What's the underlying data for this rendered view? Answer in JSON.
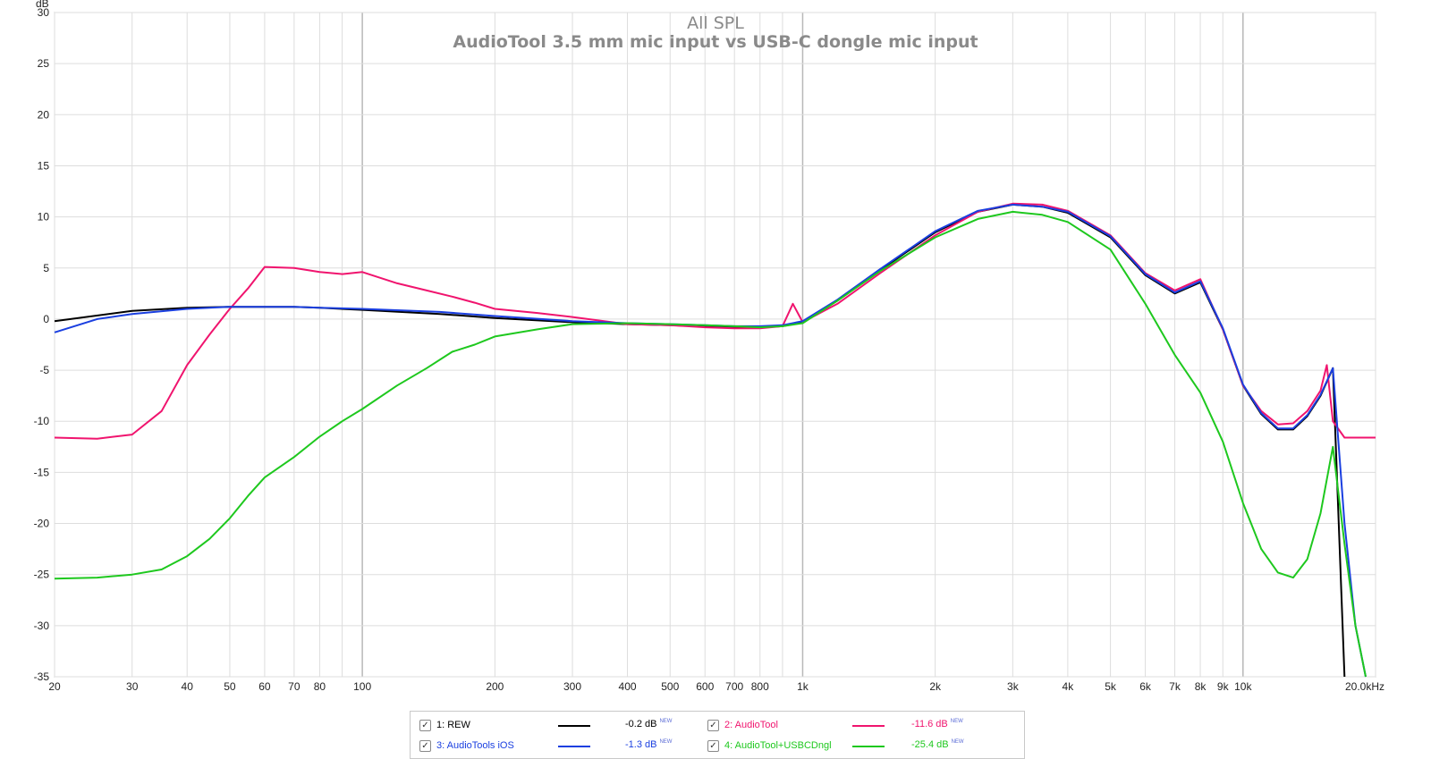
{
  "chart_data": {
    "type": "line",
    "title": "All SPL",
    "subtitle": "AudioTool 3.5 mm mic input vs USB-C dongle mic input",
    "ylabel": "dB",
    "xscale": "log",
    "xlim": [
      20,
      20000
    ],
    "ylim": [
      -35,
      30
    ],
    "yticks": [
      30,
      25,
      20,
      15,
      10,
      5,
      0,
      -5,
      -10,
      -15,
      -20,
      -25,
      -30,
      -35
    ],
    "xticks": [
      {
        "v": 20,
        "label": "20"
      },
      {
        "v": 30,
        "label": "30"
      },
      {
        "v": 40,
        "label": "40"
      },
      {
        "v": 50,
        "label": "50"
      },
      {
        "v": 60,
        "label": "60"
      },
      {
        "v": 70,
        "label": "70"
      },
      {
        "v": 80,
        "label": "80"
      },
      {
        "v": 100,
        "label": "100"
      },
      {
        "v": 200,
        "label": "200"
      },
      {
        "v": 300,
        "label": "300"
      },
      {
        "v": 400,
        "label": "400"
      },
      {
        "v": 500,
        "label": "500"
      },
      {
        "v": 600,
        "label": "600"
      },
      {
        "v": 700,
        "label": "700"
      },
      {
        "v": 800,
        "label": "800"
      },
      {
        "v": 1000,
        "label": "1k"
      },
      {
        "v": 2000,
        "label": "2k"
      },
      {
        "v": 3000,
        "label": "3k"
      },
      {
        "v": 4000,
        "label": "4k"
      },
      {
        "v": 5000,
        "label": "5k"
      },
      {
        "v": 6000,
        "label": "6k"
      },
      {
        "v": 7000,
        "label": "7k"
      },
      {
        "v": 8000,
        "label": "8k"
      },
      {
        "v": 9000,
        "label": "9k"
      },
      {
        "v": 10000,
        "label": "10k"
      },
      {
        "v": 20000,
        "label": "20.0kHz"
      }
    ],
    "grid": true,
    "series": [
      {
        "name": "1: REW",
        "color": "#000000",
        "value_label": "-0.2 dB",
        "x": [
          20,
          30,
          40,
          50,
          60,
          70,
          80,
          100,
          150,
          200,
          300,
          400,
          500,
          600,
          700,
          800,
          900,
          1000,
          1200,
          1500,
          2000,
          2500,
          3000,
          3500,
          4000,
          5000,
          6000,
          7000,
          8000,
          9000,
          10000,
          11000,
          12000,
          13000,
          14000,
          15000,
          16000,
          17000
        ],
        "y": [
          -0.2,
          0.8,
          1.1,
          1.2,
          1.2,
          1.2,
          1.1,
          0.9,
          0.5,
          0.1,
          -0.3,
          -0.5,
          -0.6,
          -0.7,
          -0.8,
          -0.8,
          -0.7,
          -0.3,
          1.8,
          4.8,
          8.5,
          10.5,
          11.2,
          11.0,
          10.4,
          8.0,
          4.3,
          2.5,
          3.6,
          -1.0,
          -6.5,
          -9.3,
          -10.8,
          -10.8,
          -9.5,
          -7.5,
          -4.8,
          -35.0
        ]
      },
      {
        "name": "2: AudioTool",
        "color": "#f0146e",
        "value_label": "-11.6 dB",
        "x": [
          20,
          25,
          30,
          35,
          40,
          45,
          50,
          55,
          60,
          70,
          80,
          90,
          100,
          120,
          140,
          160,
          180,
          200,
          250,
          300,
          400,
          500,
          600,
          700,
          800,
          900,
          950,
          1000,
          1200,
          1500,
          2000,
          2500,
          3000,
          3500,
          4000,
          5000,
          6000,
          7000,
          8000,
          9000,
          10000,
          11000,
          12000,
          13000,
          14000,
          15000,
          15500,
          16000,
          17000,
          18000,
          20000
        ],
        "y": [
          -11.6,
          -11.7,
          -11.3,
          -9.0,
          -4.5,
          -1.5,
          1.0,
          3.0,
          5.1,
          5.0,
          4.6,
          4.4,
          4.6,
          3.5,
          2.8,
          2.2,
          1.6,
          1.0,
          0.6,
          0.2,
          -0.5,
          -0.6,
          -0.8,
          -0.9,
          -0.9,
          -0.7,
          1.5,
          -0.3,
          1.5,
          4.5,
          8.2,
          10.5,
          11.3,
          11.2,
          10.6,
          8.2,
          4.5,
          2.8,
          3.9,
          -1.0,
          -6.5,
          -9.0,
          -10.3,
          -10.2,
          -9.0,
          -7.0,
          -4.5,
          -10.0,
          -11.6,
          -11.6,
          -11.6
        ]
      },
      {
        "name": "3: AudioTools iOS",
        "color": "#1a3fe0",
        "value_label": "-1.3 dB",
        "x": [
          20,
          25,
          30,
          40,
          50,
          60,
          70,
          80,
          100,
          150,
          200,
          300,
          400,
          500,
          600,
          700,
          800,
          900,
          1000,
          1200,
          1500,
          2000,
          2500,
          3000,
          3500,
          4000,
          5000,
          6000,
          7000,
          8000,
          9000,
          10000,
          11000,
          12000,
          13000,
          14000,
          15000,
          16000,
          17000,
          18000,
          19000
        ],
        "y": [
          -1.3,
          0.0,
          0.5,
          1.0,
          1.2,
          1.2,
          1.2,
          1.1,
          1.0,
          0.7,
          0.3,
          -0.2,
          -0.4,
          -0.5,
          -0.6,
          -0.7,
          -0.7,
          -0.6,
          -0.2,
          1.9,
          4.9,
          8.6,
          10.6,
          11.2,
          11.0,
          10.5,
          8.1,
          4.4,
          2.6,
          3.7,
          -0.9,
          -6.4,
          -9.2,
          -10.7,
          -10.7,
          -9.4,
          -7.4,
          -4.8,
          -20.0,
          -30.0,
          -35.0
        ]
      },
      {
        "name": "4: AudioTool+USBCDngl",
        "color": "#1ec81e",
        "value_label": "-25.4 dB",
        "x": [
          20,
          25,
          30,
          35,
          40,
          45,
          50,
          55,
          60,
          70,
          80,
          90,
          100,
          120,
          140,
          160,
          180,
          200,
          250,
          300,
          400,
          500,
          600,
          700,
          800,
          900,
          1000,
          1200,
          1500,
          2000,
          2500,
          3000,
          3500,
          4000,
          5000,
          6000,
          7000,
          8000,
          9000,
          10000,
          11000,
          12000,
          13000,
          14000,
          15000,
          16000,
          17000,
          18000,
          19000
        ],
        "y": [
          -25.4,
          -25.3,
          -25.0,
          -24.5,
          -23.2,
          -21.5,
          -19.5,
          -17.3,
          -15.5,
          -13.5,
          -11.5,
          -10.0,
          -8.8,
          -6.5,
          -4.8,
          -3.2,
          -2.5,
          -1.7,
          -1.0,
          -0.5,
          -0.4,
          -0.5,
          -0.6,
          -0.7,
          -0.8,
          -0.7,
          -0.4,
          1.8,
          4.7,
          8.0,
          9.8,
          10.5,
          10.2,
          9.5,
          6.8,
          1.5,
          -3.5,
          -7.2,
          -12.0,
          -18.0,
          -22.5,
          -24.8,
          -25.3,
          -23.5,
          -19.0,
          -12.5,
          -22.0,
          -30.0,
          -35.0
        ]
      }
    ]
  }
}
